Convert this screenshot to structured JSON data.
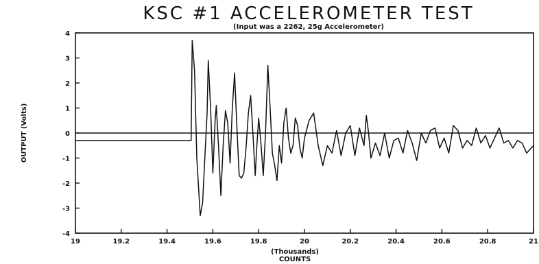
{
  "chart_data": {
    "type": "line",
    "title": "KSC #1 ACCELEROMETER TEST",
    "subtitle": "(Input was a 2262, 25g Accelerometer)",
    "xlabel": "COUNTS",
    "xunit": "(Thousands)",
    "ylabel": "OUTPUT (Volts)",
    "xlim": [
      19,
      21
    ],
    "ylim": [
      -4,
      4
    ],
    "x_ticks": [
      19,
      19.2,
      19.4,
      19.6,
      19.8,
      20,
      20.2,
      20.4,
      20.6,
      20.8,
      21
    ],
    "x_tick_labels": [
      "19",
      "19.2",
      "19.4",
      "19.6",
      "19.8",
      "20",
      "20.2",
      "20.4",
      "20.6",
      "20.8",
      "21"
    ],
    "y_ticks": [
      4,
      3,
      2,
      1,
      0,
      -1,
      -2,
      -3,
      -4
    ],
    "y_tick_labels": [
      "4",
      "3",
      "2",
      "1",
      "0",
      "-1",
      "-2",
      "-3",
      "-4"
    ],
    "zero_line": true,
    "grid": false,
    "color": "#111111",
    "series": [
      {
        "x": [
          19.0,
          19.05,
          19.1,
          19.15,
          19.2,
          19.25,
          19.3,
          19.35,
          19.4,
          19.45,
          19.505,
          19.51,
          19.52,
          19.53,
          19.545,
          19.555,
          19.565,
          19.575,
          19.58,
          19.59,
          19.6,
          19.61,
          19.615,
          19.625,
          19.635,
          19.645,
          19.655,
          19.665,
          19.675,
          19.685,
          19.695,
          19.705,
          19.715,
          19.725,
          19.735,
          19.745,
          19.755,
          19.765,
          19.775,
          19.785,
          19.79,
          19.8,
          19.81,
          19.82,
          19.83,
          19.84,
          19.85,
          19.86,
          19.87,
          19.88,
          19.89,
          19.9,
          19.91,
          19.92,
          19.93,
          19.94,
          19.95,
          19.96,
          19.97,
          19.98,
          19.99,
          20.0,
          20.02,
          20.04,
          20.06,
          20.08,
          20.1,
          20.12,
          20.14,
          20.16,
          20.18,
          20.2,
          20.22,
          20.24,
          20.26,
          20.27,
          20.28,
          20.29,
          20.31,
          20.33,
          20.35,
          20.37,
          20.39,
          20.41,
          20.43,
          20.45,
          20.47,
          20.49,
          20.51,
          20.53,
          20.55,
          20.57,
          20.59,
          20.61,
          20.63,
          20.65,
          20.67,
          20.69,
          20.71,
          20.73,
          20.75,
          20.77,
          20.79,
          20.81,
          20.83,
          20.85,
          20.87,
          20.89,
          20.91,
          20.93,
          20.95,
          20.97,
          21.0
        ],
        "y": [
          -0.3,
          -0.3,
          -0.3,
          -0.3,
          -0.3,
          -0.3,
          -0.3,
          -0.3,
          -0.3,
          -0.3,
          -0.3,
          3.7,
          2.5,
          -1.0,
          -3.3,
          -2.8,
          -1.0,
          0.8,
          2.9,
          1.0,
          -1.6,
          0.5,
          1.1,
          -0.6,
          -2.5,
          -0.5,
          0.9,
          0.4,
          -1.2,
          1.0,
          2.4,
          0.2,
          -1.7,
          -1.8,
          -1.6,
          -0.6,
          0.8,
          1.5,
          0.0,
          -1.7,
          -0.8,
          0.6,
          -0.4,
          -1.7,
          0.0,
          2.7,
          1.0,
          -0.8,
          -1.3,
          -1.9,
          -0.5,
          -1.2,
          0.4,
          1.0,
          -0.2,
          -0.8,
          -0.5,
          0.6,
          0.3,
          -0.6,
          -1.0,
          -0.2,
          0.5,
          0.8,
          -0.5,
          -1.3,
          -0.5,
          -0.8,
          0.1,
          -0.9,
          0.0,
          0.3,
          -0.9,
          0.2,
          -0.5,
          0.7,
          0.0,
          -1.0,
          -0.4,
          -0.9,
          0.0,
          -1.0,
          -0.3,
          -0.2,
          -0.8,
          0.1,
          -0.4,
          -1.1,
          0.0,
          -0.4,
          0.1,
          0.2,
          -0.6,
          -0.2,
          -0.8,
          0.3,
          0.1,
          -0.6,
          -0.3,
          -0.5,
          0.2,
          -0.4,
          -0.1,
          -0.6,
          -0.2,
          0.2,
          -0.4,
          -0.3,
          -0.6,
          -0.3,
          -0.4,
          -0.8,
          -0.5
        ]
      }
    ]
  }
}
